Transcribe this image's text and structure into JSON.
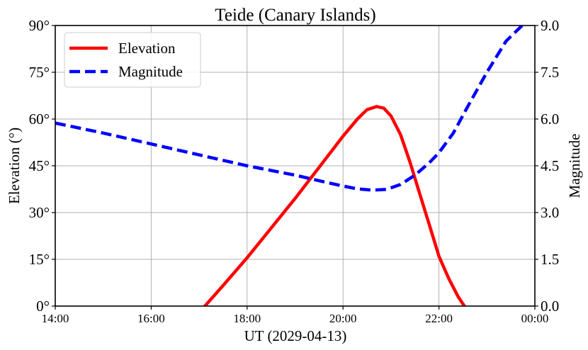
{
  "chart_data": {
    "type": "line",
    "title": "Teide (Canary Islands)",
    "xlabel": "UT (2029-04-13)",
    "ylabel_left": "Elevation (°)",
    "ylabel_right": "Magnitude",
    "x_tick_labels": [
      "14:00",
      "16:00",
      "18:00",
      "20:00",
      "22:00",
      "00:00"
    ],
    "x_ticks_hours": [
      14,
      16,
      18,
      20,
      22,
      24
    ],
    "xlim_hours": [
      14,
      24
    ],
    "y_left_tick_labels": [
      "0°",
      "15°",
      "30°",
      "45°",
      "60°",
      "75°",
      "90°"
    ],
    "y_left_ticks": [
      0,
      15,
      30,
      45,
      60,
      75,
      90
    ],
    "ylim_left": [
      0,
      90
    ],
    "y_right_tick_labels": [
      "0.0",
      "1.5",
      "3.0",
      "4.5",
      "6.0",
      "7.5",
      "9.0"
    ],
    "y_right_ticks": [
      0,
      1.5,
      3,
      4.5,
      6,
      7.5,
      9
    ],
    "ylim_right": [
      0,
      9
    ],
    "grid": true,
    "legend_position": "top-left",
    "series": [
      {
        "name": "Elevation",
        "axis": "left",
        "color": "#ff0000",
        "style": "solid",
        "x": [
          17.12,
          17.5,
          18.0,
          18.5,
          19.0,
          19.5,
          20.0,
          20.3,
          20.5,
          20.7,
          20.85,
          21.0,
          21.2,
          21.4,
          21.6,
          21.8,
          22.0,
          22.2,
          22.4,
          22.53
        ],
        "y": [
          0,
          6.6,
          15.5,
          25,
          34.5,
          44.5,
          54.5,
          60,
          63,
          64,
          63.5,
          61,
          55,
          46,
          36,
          26,
          16,
          9,
          3,
          0
        ]
      },
      {
        "name": "Magnitude",
        "axis": "right",
        "color": "#0000ff",
        "style": "dashed",
        "x": [
          14.0,
          15.0,
          16.0,
          17.0,
          18.0,
          19.0,
          19.5,
          20.0,
          20.3,
          20.6,
          20.9,
          21.2,
          21.5,
          21.8,
          22.0,
          22.3,
          22.6,
          23.0,
          23.4,
          23.8
        ],
        "y": [
          5.87,
          5.55,
          5.2,
          4.85,
          4.5,
          4.2,
          4.02,
          3.85,
          3.76,
          3.72,
          3.74,
          3.9,
          4.2,
          4.6,
          4.92,
          5.55,
          6.4,
          7.5,
          8.5,
          9.1
        ]
      }
    ]
  }
}
